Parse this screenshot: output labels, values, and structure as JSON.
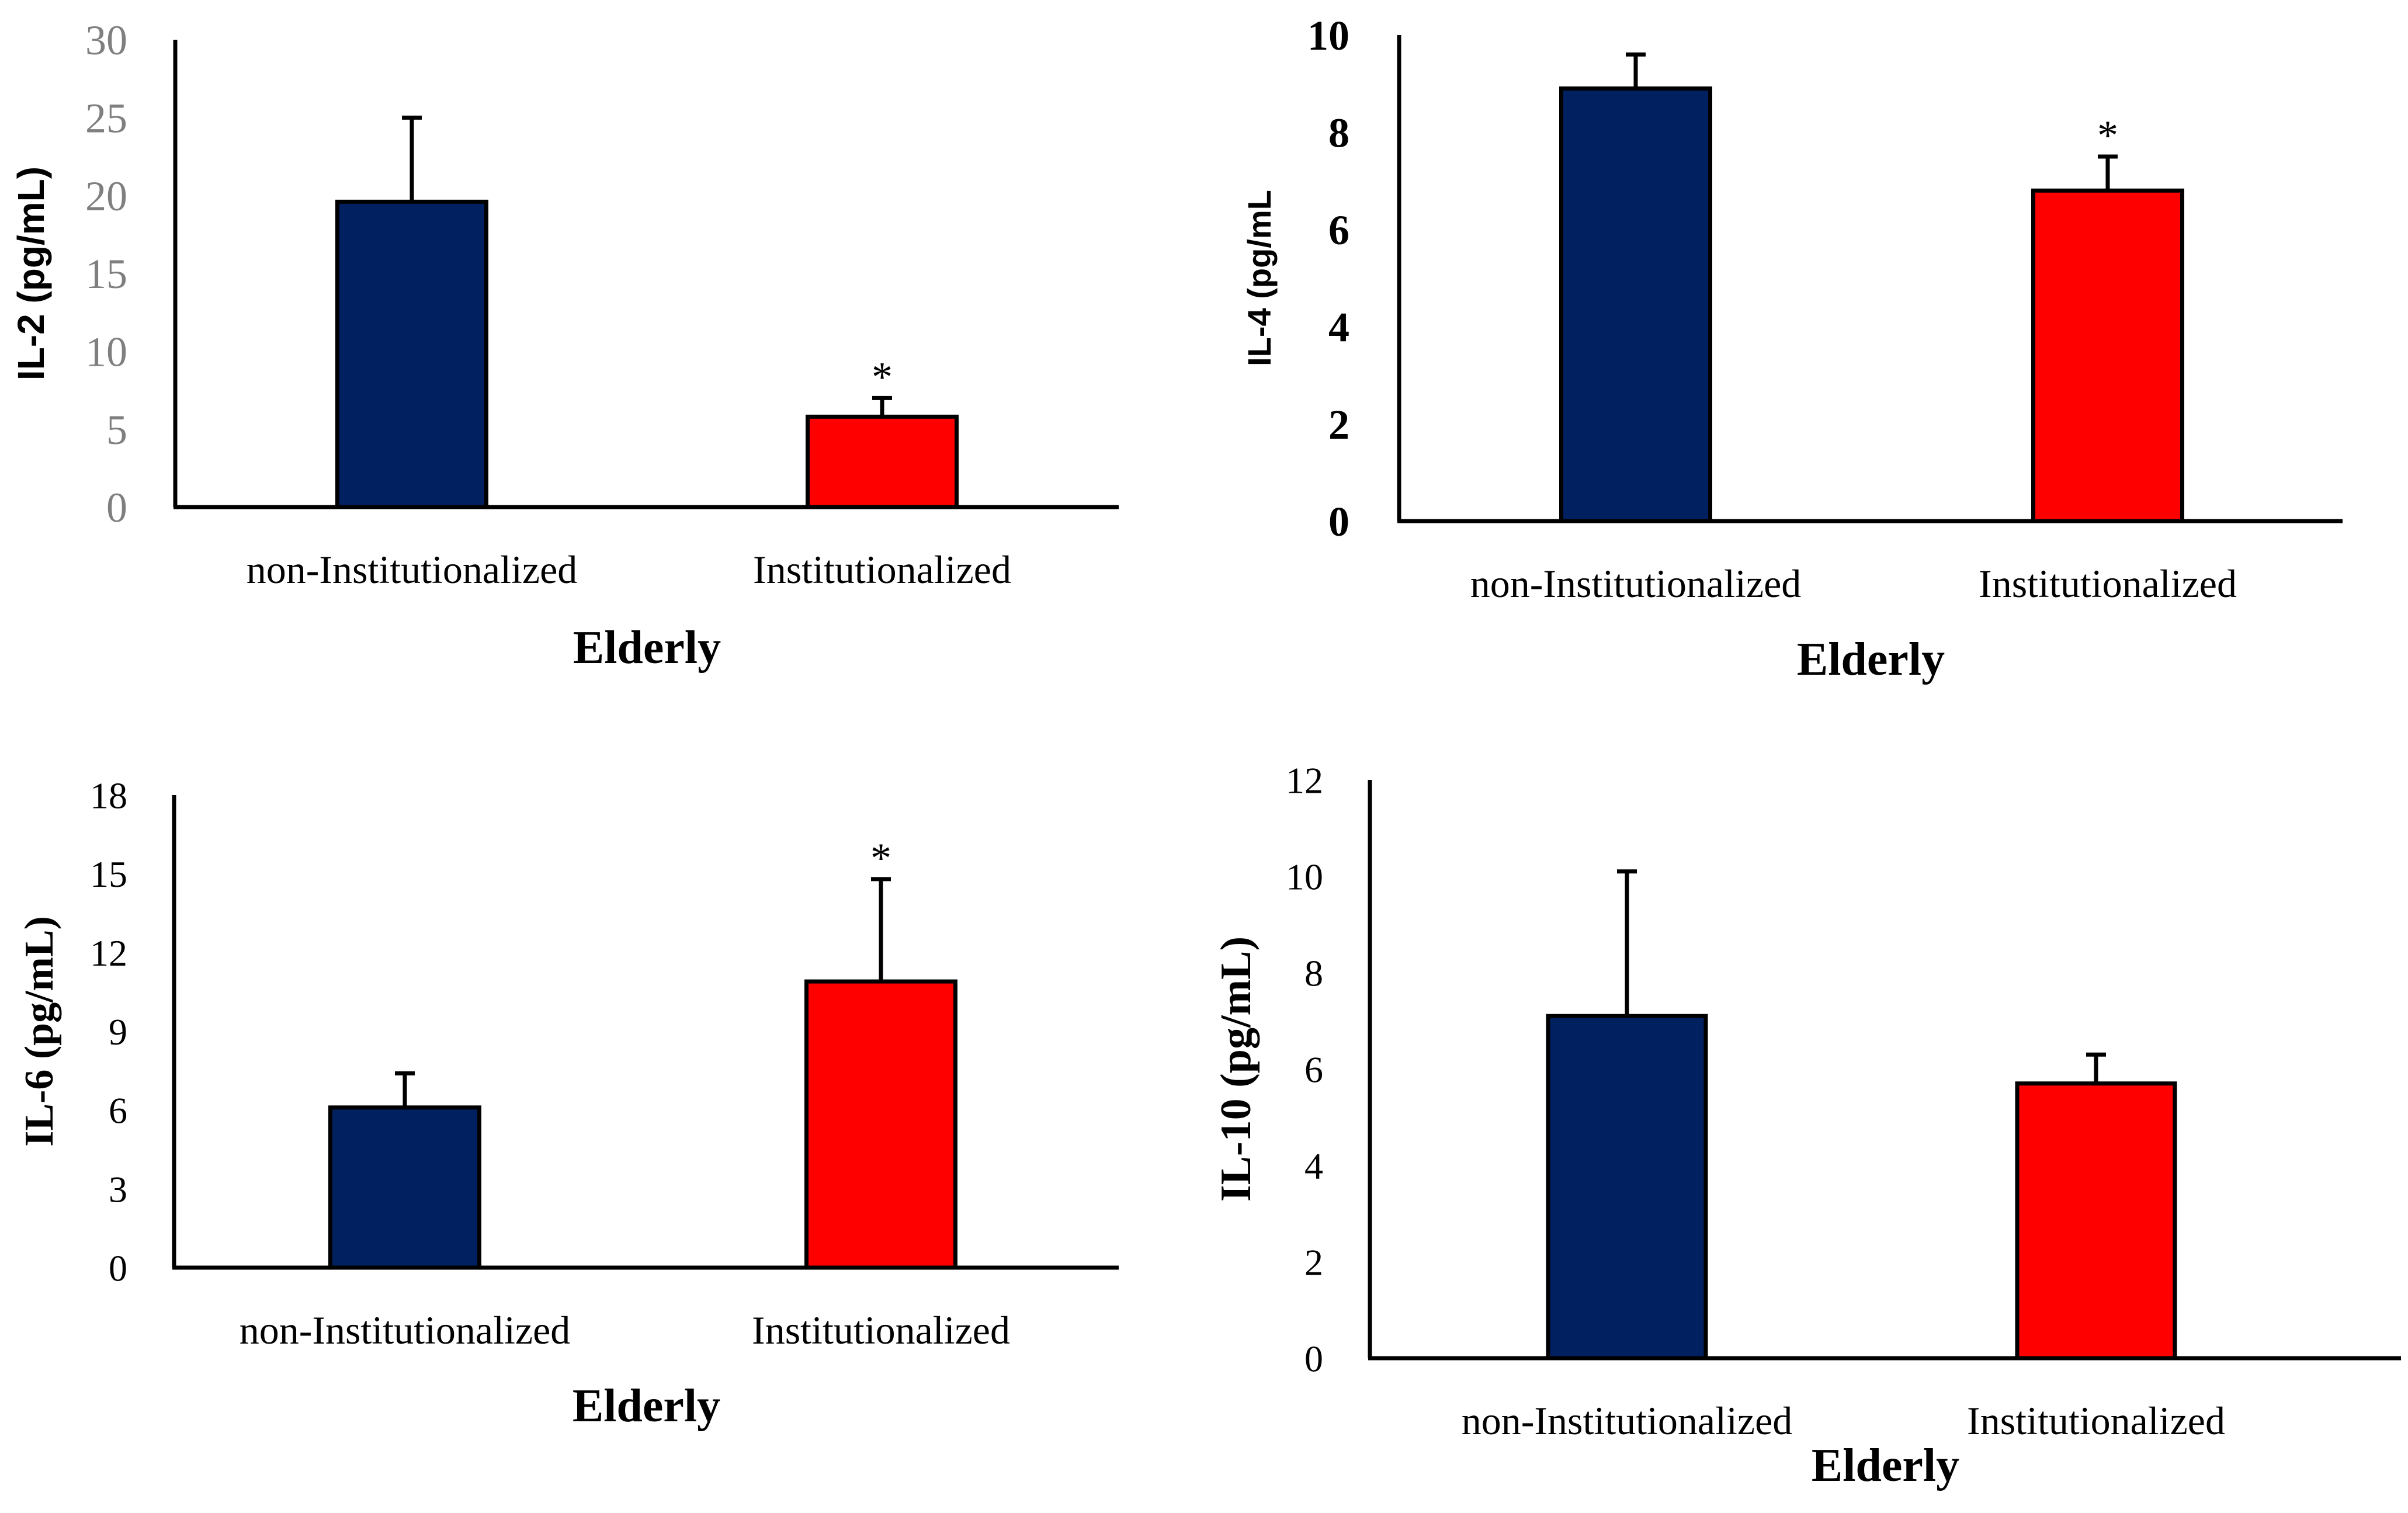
{
  "colors": {
    "non_institutionalized": "#002060",
    "institutionalized": "#FF0000",
    "axis": "#000000",
    "tick_label_panel_a": "#7F7F7F",
    "text": "#000000"
  },
  "chart_data": [
    {
      "type": "bar",
      "panel": "top-left",
      "categories": [
        "non-Institutionalized",
        "Institutionalized"
      ],
      "values": [
        19.6,
        5.8
      ],
      "errors": [
        5.4,
        1.2
      ],
      "significance": [
        "",
        "*"
      ],
      "xlabel": "Elderly",
      "ylabel": "IL-2 (pg/mL)",
      "ylim": [
        0,
        30
      ],
      "yticks": [
        0,
        5,
        10,
        15,
        20,
        25,
        30
      ]
    },
    {
      "type": "bar",
      "panel": "top-right",
      "categories": [
        "non-Institutionalized",
        "Institutionalized"
      ],
      "values": [
        8.9,
        6.8
      ],
      "errors": [
        0.7,
        0.7
      ],
      "significance": [
        "",
        "*"
      ],
      "xlabel": "Elderly",
      "ylabel": "IL-4 (pg/mL",
      "ylim": [
        0,
        10
      ],
      "yticks": [
        0,
        2,
        4,
        6,
        8,
        10
      ]
    },
    {
      "type": "bar",
      "panel": "bottom-left",
      "categories": [
        "non-Institutionalized",
        "Institutionalized"
      ],
      "values": [
        6.1,
        10.9
      ],
      "errors": [
        1.3,
        3.9
      ],
      "significance": [
        "",
        "*"
      ],
      "xlabel": "Elderly",
      "ylabel": "IL-6 (pg/mL)",
      "ylim": [
        0,
        18
      ],
      "yticks": [
        0,
        3,
        6,
        9,
        12,
        15,
        18
      ]
    },
    {
      "type": "bar",
      "panel": "bottom-right",
      "categories": [
        "non-Institutionalized",
        "Institutionalized"
      ],
      "values": [
        7.1,
        5.7
      ],
      "errors": [
        3.0,
        0.6
      ],
      "significance": [
        "",
        ""
      ],
      "xlabel": "Elderly",
      "ylabel": "IL-10 (pg/mL)",
      "ylim": [
        0,
        12
      ],
      "yticks": [
        0,
        2,
        4,
        6,
        8,
        10,
        12
      ]
    }
  ]
}
